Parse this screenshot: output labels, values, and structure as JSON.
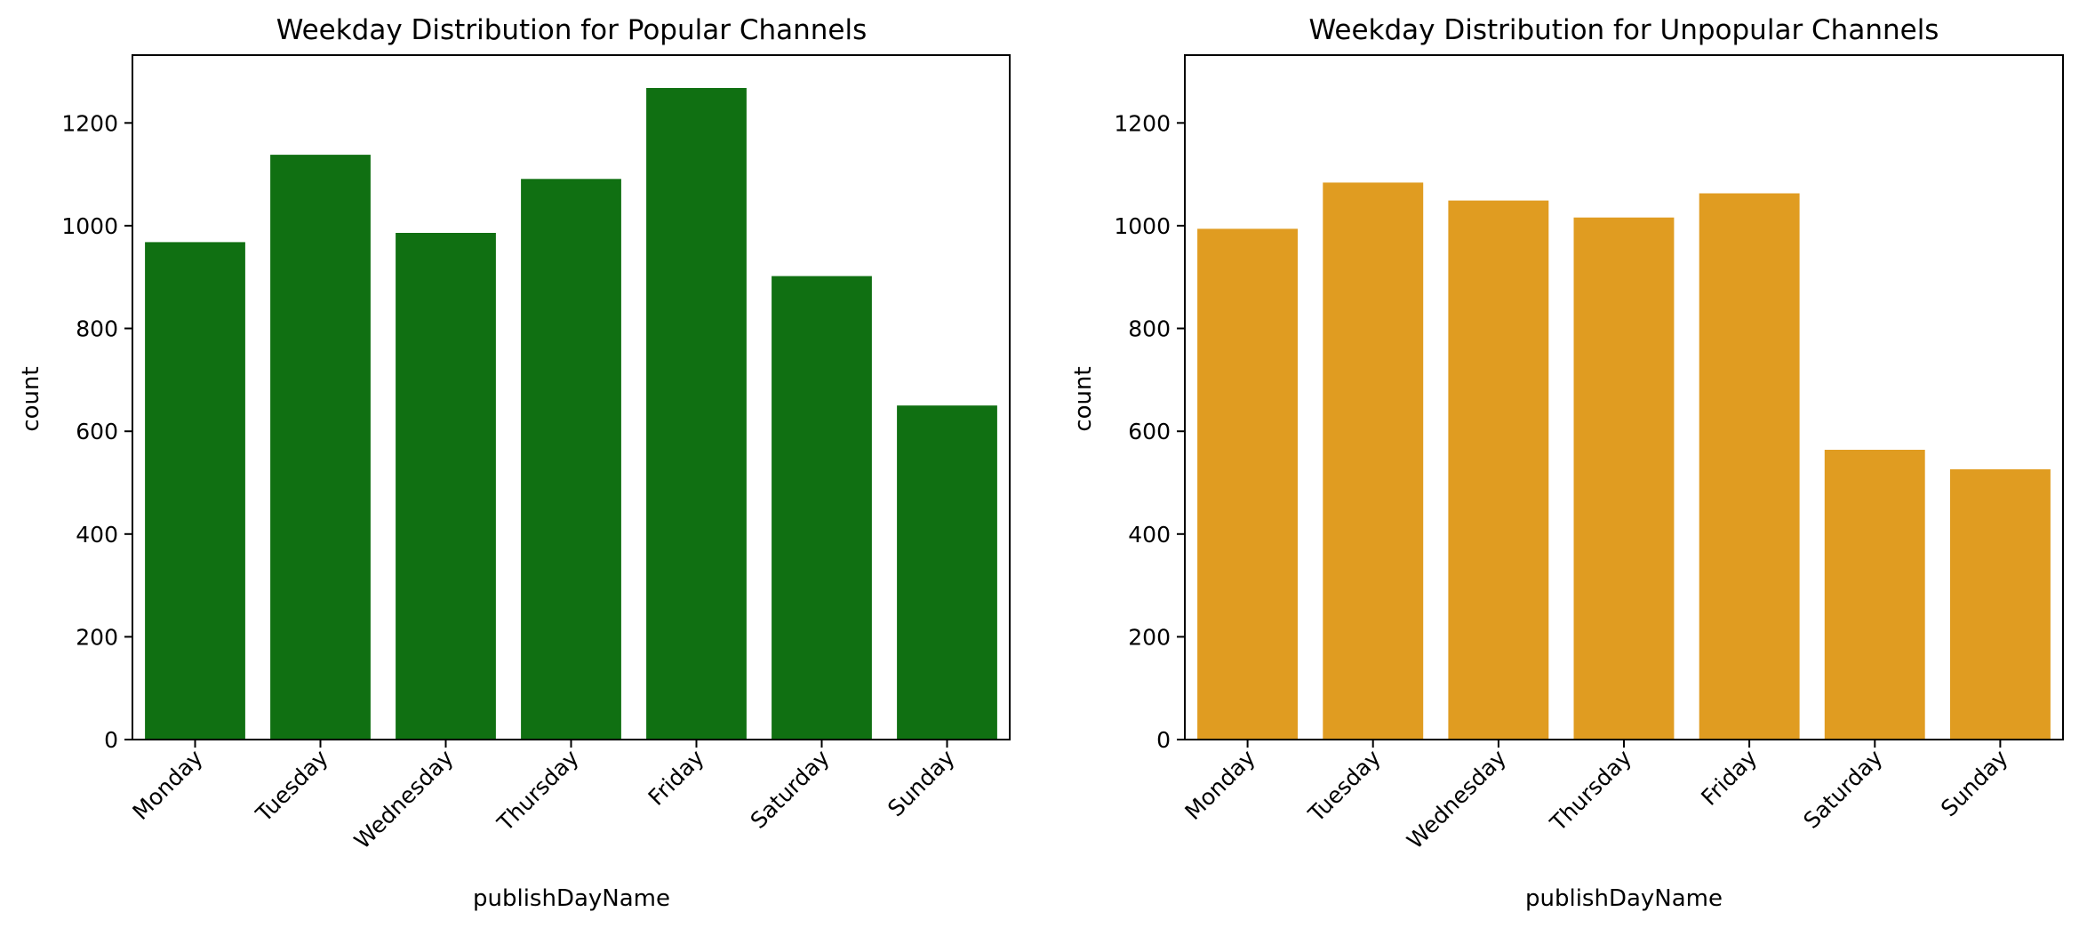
{
  "chart_data": [
    {
      "type": "bar",
      "title": "Weekday Distribution for Popular Channels",
      "xlabel": "publishDayName",
      "ylabel": "count",
      "categories": [
        "Monday",
        "Tuesday",
        "Wednesday",
        "Thursday",
        "Friday",
        "Saturday",
        "Sunday"
      ],
      "values": [
        968,
        1138,
        986,
        1091,
        1268,
        902,
        650
      ],
      "ylim": [
        0,
        1332
      ],
      "yticks": [
        0,
        200,
        400,
        600,
        800,
        1000,
        1200
      ],
      "color": "#107012",
      "grid": false,
      "legend": "none"
    },
    {
      "type": "bar",
      "title": "Weekday Distribution for Unpopular Channels",
      "xlabel": "publishDayName",
      "ylabel": "count",
      "categories": [
        "Monday",
        "Tuesday",
        "Wednesday",
        "Thursday",
        "Friday",
        "Saturday",
        "Sunday"
      ],
      "values": [
        994,
        1084,
        1049,
        1016,
        1063,
        564,
        526
      ],
      "ylim": [
        0,
        1332
      ],
      "yticks": [
        0,
        200,
        400,
        600,
        800,
        1000,
        1200
      ],
      "color": "#e09c21",
      "grid": false,
      "legend": "none"
    }
  ]
}
